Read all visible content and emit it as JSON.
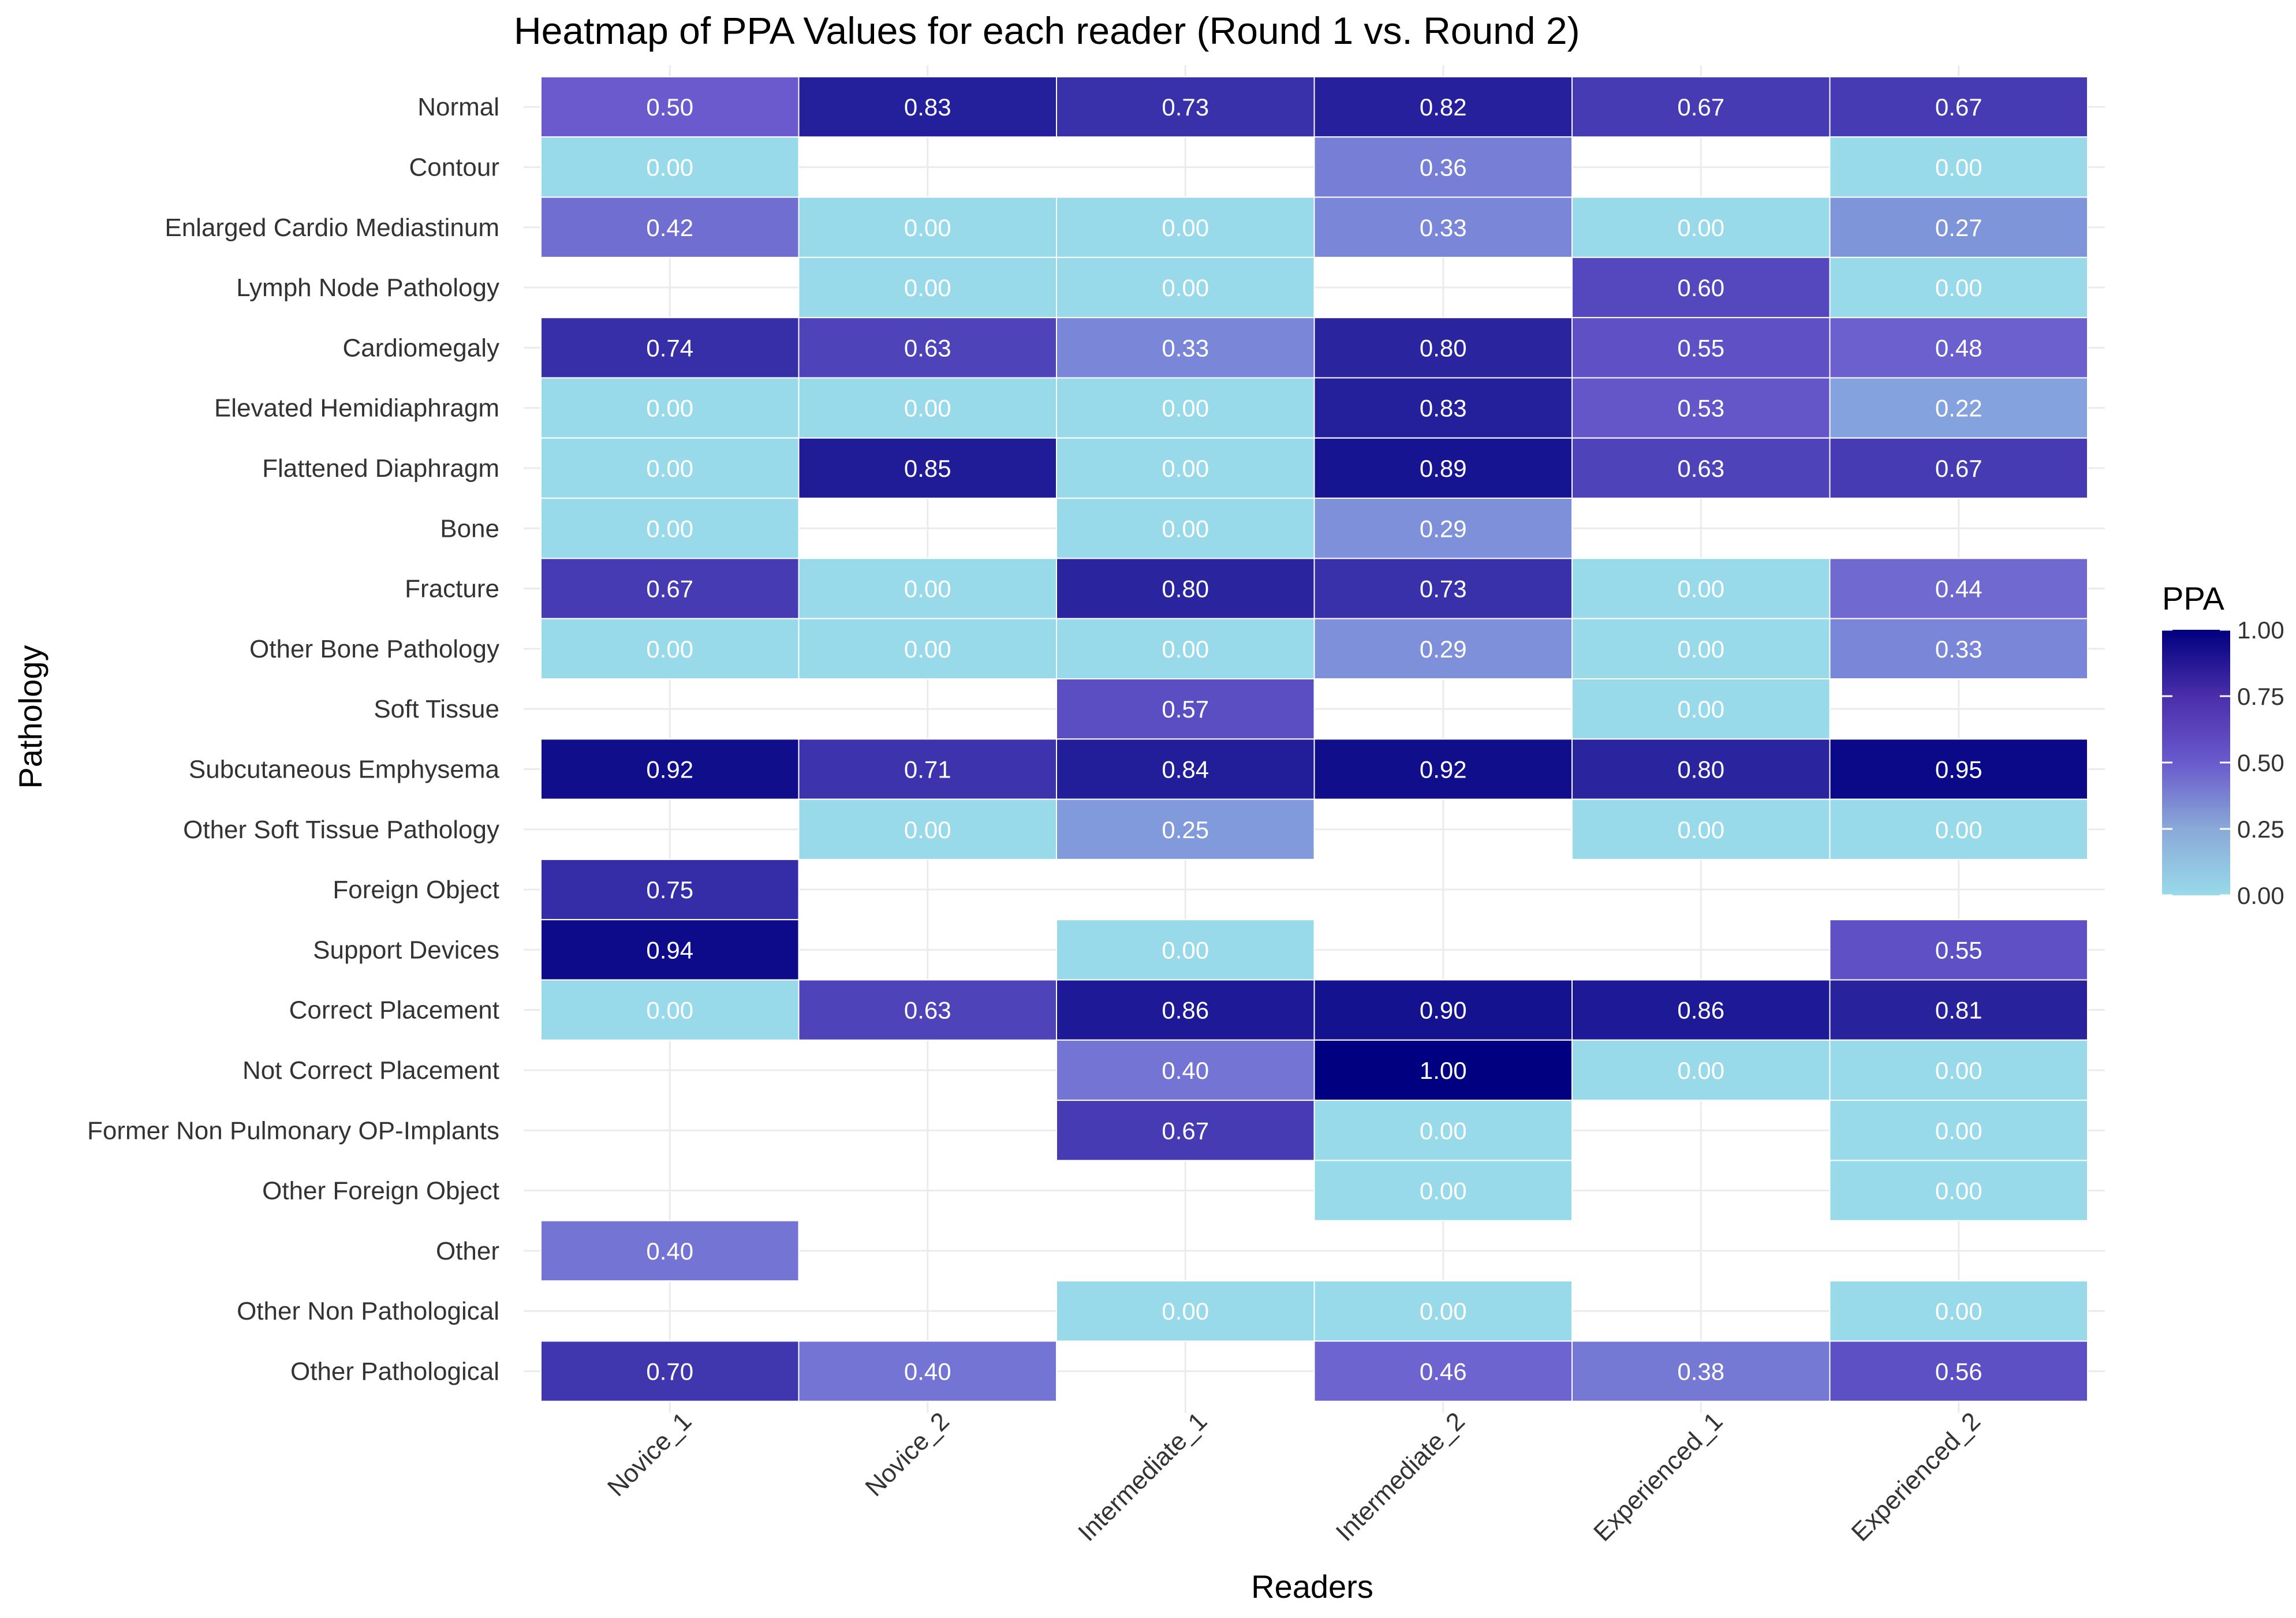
{
  "chart_data": {
    "type": "heatmap",
    "title": "Heatmap of PPA Values for each reader (Round 1 vs. Round 2)",
    "xlabel": "Readers",
    "ylabel": "Pathology",
    "x": [
      "Novice_1",
      "Novice_2",
      "Intermediate_1",
      "Intermediate_2",
      "Experienced_1",
      "Experienced_2"
    ],
    "y": [
      "Normal",
      "Contour",
      "Enlarged Cardio Mediastinum",
      "Lymph Node Pathology",
      "Cardiomegaly",
      "Elevated Hemidiaphragm",
      "Flattened Diaphragm",
      "Bone",
      "Fracture",
      "Other Bone Pathology",
      "Soft Tissue",
      "Subcutaneous Emphysema",
      "Other Soft Tissue Pathology",
      "Foreign Object",
      "Support Devices",
      "Correct Placement",
      "Not Correct Placement",
      "Former Non Pulmonary OP-Implants",
      "Other Foreign Object",
      "Other",
      "Other Non Pathological",
      "Other Pathological"
    ],
    "values": [
      [
        0.5,
        0.83,
        0.73,
        0.82,
        0.67,
        0.67
      ],
      [
        0.0,
        null,
        null,
        0.36,
        null,
        0.0
      ],
      [
        0.42,
        0.0,
        0.0,
        0.33,
        0.0,
        0.27
      ],
      [
        null,
        0.0,
        0.0,
        null,
        0.6,
        0.0
      ],
      [
        0.74,
        0.63,
        0.33,
        0.8,
        0.55,
        0.48
      ],
      [
        0.0,
        0.0,
        0.0,
        0.83,
        0.53,
        0.22
      ],
      [
        0.0,
        0.85,
        0.0,
        0.89,
        0.63,
        0.67
      ],
      [
        0.0,
        null,
        0.0,
        0.29,
        null,
        null
      ],
      [
        0.67,
        0.0,
        0.8,
        0.73,
        0.0,
        0.44
      ],
      [
        0.0,
        0.0,
        0.0,
        0.29,
        0.0,
        0.33
      ],
      [
        null,
        null,
        0.57,
        null,
        0.0,
        null
      ],
      [
        0.92,
        0.71,
        0.84,
        0.92,
        0.8,
        0.95
      ],
      [
        null,
        0.0,
        0.25,
        null,
        0.0,
        0.0
      ],
      [
        0.75,
        null,
        null,
        null,
        null,
        null
      ],
      [
        0.94,
        null,
        0.0,
        null,
        null,
        0.55
      ],
      [
        0.0,
        0.63,
        0.86,
        0.9,
        0.86,
        0.81
      ],
      [
        null,
        null,
        0.4,
        1.0,
        0.0,
        0.0
      ],
      [
        null,
        null,
        0.67,
        0.0,
        null,
        0.0
      ],
      [
        null,
        null,
        null,
        0.0,
        null,
        0.0
      ],
      [
        0.4,
        null,
        null,
        null,
        null,
        null
      ],
      [
        null,
        null,
        0.0,
        0.0,
        null,
        0.0
      ],
      [
        0.7,
        0.4,
        null,
        0.46,
        0.38,
        0.56
      ]
    ],
    "value_range": [
      0,
      1
    ],
    "legend": {
      "title": "PPA",
      "ticks": [
        "1.00",
        "0.75",
        "0.50",
        "0.25",
        "0.00"
      ],
      "position": "right"
    },
    "colors": {
      "low": "#98DAEA",
      "mid": "#6A5ACD",
      "high": "#000080",
      "grid": "#EBEBEB"
    },
    "grid": true
  }
}
